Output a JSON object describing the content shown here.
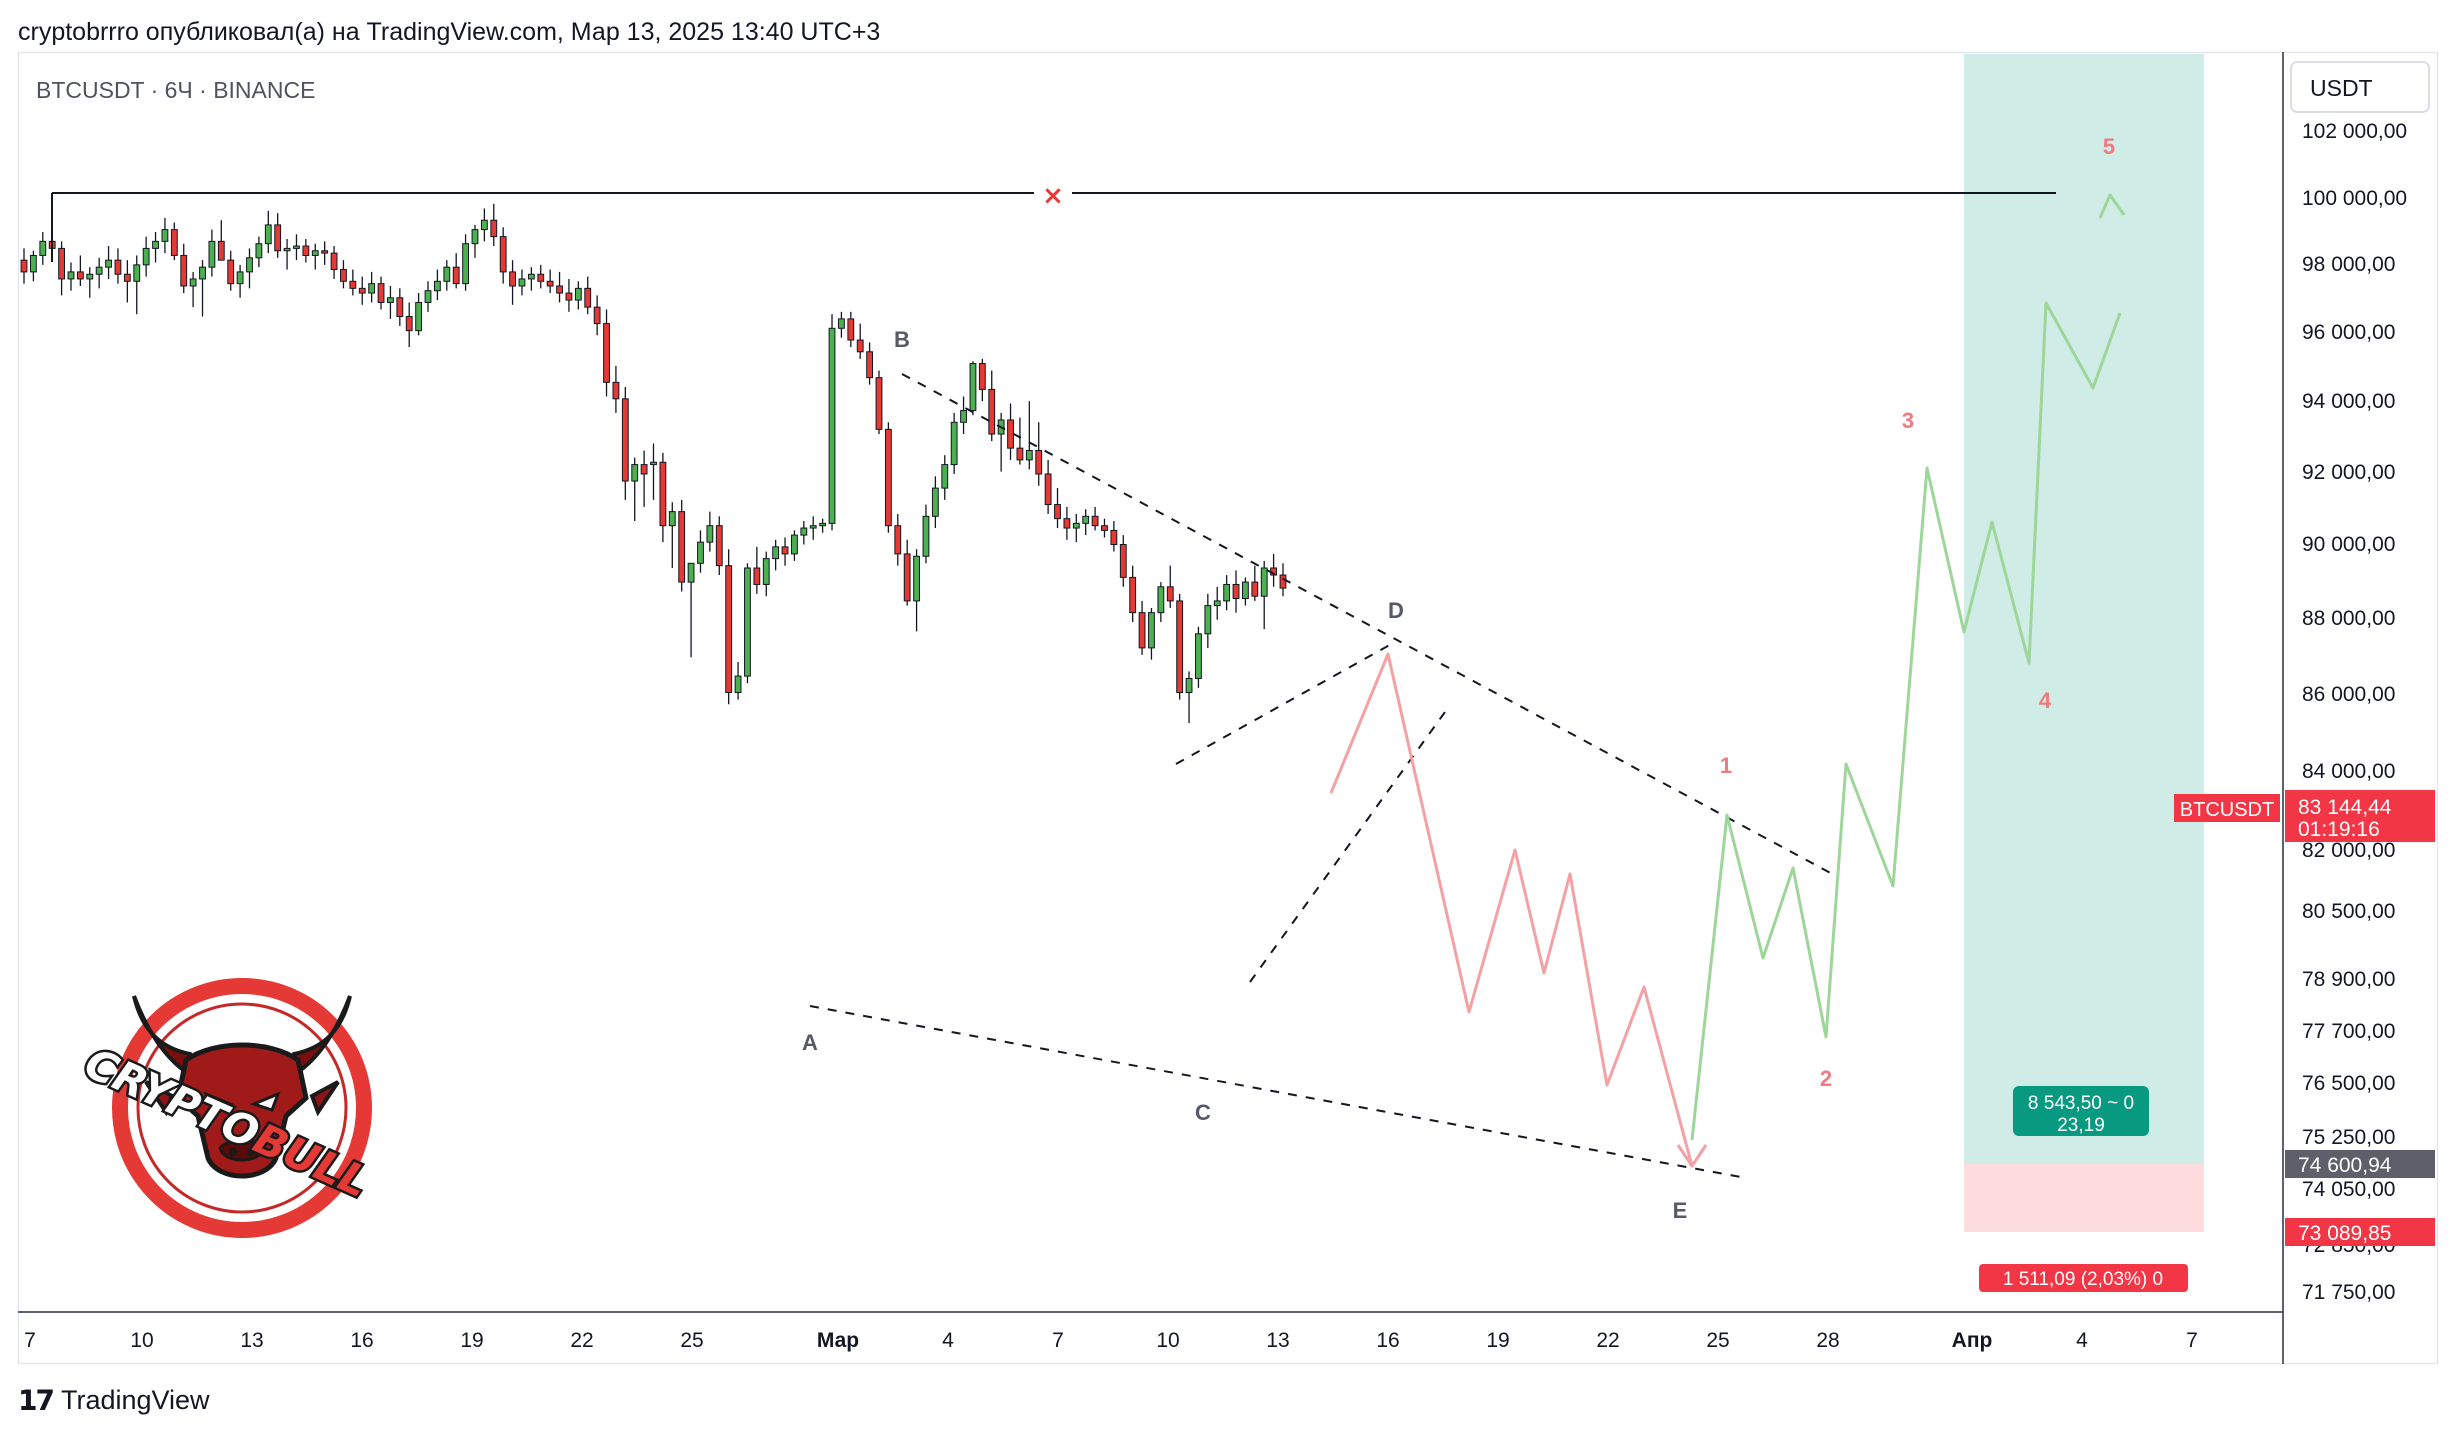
{
  "header": {
    "attribution": "cryptobrrro опубликовал(а) на TradingView.com, Мар 13, 2025 13:40 UTC+3"
  },
  "chart_title": "BTCUSDT · 6Ч · BINANCE",
  "currency": "USDT",
  "footer": {
    "brand": "TradingView"
  },
  "logo": {
    "word1": "CRYPTO",
    "word2": "BULL"
  },
  "colors": {
    "up": "#26a69a",
    "down": "#ef5350",
    "projection_down": "#f4a1a5",
    "projection_up": "#9ed69a",
    "target_zone": "#cfece6",
    "stop_zone": "#fcdcdd",
    "wave_label_red": "#f07a80",
    "wave_label_gray": "#555a66"
  },
  "chart_data": {
    "type": "candlestick",
    "timeframe": "6Ч",
    "symbol": "BTCUSDT",
    "exchange": "BINANCE",
    "x_ticks": [
      "7",
      "10",
      "13",
      "16",
      "19",
      "22",
      "25",
      "Мар",
      "4",
      "7",
      "10",
      "13",
      "16",
      "19",
      "22",
      "25",
      "28",
      "Апр",
      "4",
      "7"
    ],
    "y_ticks": [
      "102 000,00",
      "100 000,00",
      "98 000,00",
      "96 000,00",
      "94 000,00",
      "92 000,00",
      "90 000,00",
      "88 000,00",
      "86 000,00",
      "84 000,00",
      "82 000,00",
      "80 500,00",
      "78 900,00",
      "77 700,00",
      "76 500,00",
      "75 250,00",
      "74 050,00",
      "72 850,00",
      "71 750,00"
    ],
    "price_tags": {
      "last": {
        "symbol": "BTCUSDT",
        "price": "83 144,44",
        "countdown": "01:19:16"
      },
      "entry": "74 600,94",
      "stop": "73 089,85"
    },
    "position": {
      "target_label_1": "8 543,50 ~ 0",
      "target_label_2": "23,19",
      "stop_label": "1 511,09 (2,03%) 0"
    },
    "resistance_level": 100000,
    "wave_labels_corrective": [
      "A",
      "B",
      "C",
      "D",
      "E"
    ],
    "wave_labels_impulse": [
      "1",
      "2",
      "3",
      "4",
      "5"
    ],
    "pattern": "contracting triangle A-B-C-D-E followed by 5-wave impulse",
    "candles": [
      [
        97100,
        97600,
        96100,
        96600
      ],
      [
        96600,
        97500,
        96200,
        97300
      ],
      [
        97300,
        98300,
        96900,
        97900
      ],
      [
        97900,
        99800,
        97300,
        97600
      ],
      [
        97600,
        97900,
        95600,
        96300
      ],
      [
        96300,
        97000,
        95800,
        96600
      ],
      [
        96600,
        97300,
        96000,
        96300
      ],
      [
        96300,
        96800,
        95500,
        96500
      ],
      [
        96500,
        97200,
        95900,
        96800
      ],
      [
        96800,
        97700,
        96300,
        97100
      ],
      [
        97100,
        97600,
        96100,
        96500
      ],
      [
        96500,
        97100,
        95300,
        96200
      ],
      [
        96200,
        97300,
        94800,
        96900
      ],
      [
        96900,
        98100,
        96400,
        97600
      ],
      [
        97600,
        98300,
        97000,
        97900
      ],
      [
        97900,
        98900,
        97400,
        98400
      ],
      [
        98400,
        98700,
        97100,
        97300
      ],
      [
        97300,
        97800,
        95700,
        96000
      ],
      [
        96000,
        96600,
        95100,
        96300
      ],
      [
        96300,
        97100,
        94700,
        96800
      ],
      [
        96800,
        98400,
        96400,
        97900
      ],
      [
        97900,
        98800,
        97300,
        97100
      ],
      [
        97100,
        97500,
        95800,
        96100
      ],
      [
        96100,
        96900,
        95500,
        96600
      ],
      [
        96600,
        97600,
        95900,
        97200
      ],
      [
        97200,
        98100,
        96800,
        97800
      ],
      [
        97800,
        99200,
        97400,
        98600
      ],
      [
        98600,
        99100,
        97200,
        97500
      ],
      [
        97500,
        98000,
        96700,
        97600
      ],
      [
        97600,
        98200,
        97100,
        97700
      ],
      [
        97700,
        98000,
        97000,
        97300
      ],
      [
        97300,
        97800,
        96700,
        97500
      ],
      [
        97500,
        97900,
        96900,
        97400
      ],
      [
        97400,
        97700,
        96300,
        96700
      ],
      [
        96700,
        97100,
        95900,
        96200
      ],
      [
        96200,
        96700,
        95600,
        95900
      ],
      [
        95900,
        96400,
        95200,
        95700
      ],
      [
        95700,
        96600,
        95300,
        96100
      ],
      [
        96100,
        96400,
        95000,
        95300
      ],
      [
        95300,
        96000,
        94600,
        95500
      ],
      [
        95500,
        95900,
        94300,
        94700
      ],
      [
        94700,
        95300,
        93400,
        94100
      ],
      [
        94100,
        95700,
        93900,
        95300
      ],
      [
        95300,
        96200,
        94900,
        95800
      ],
      [
        95800,
        96700,
        95400,
        96200
      ],
      [
        96200,
        97100,
        95800,
        96800
      ],
      [
        96800,
        97400,
        95900,
        96100
      ],
      [
        96100,
        98200,
        95800,
        97800
      ],
      [
        97800,
        98600,
        97200,
        98400
      ],
      [
        98400,
        99300,
        97900,
        98800
      ],
      [
        98800,
        99500,
        97700,
        98100
      ],
      [
        98100,
        98500,
        96100,
        96600
      ],
      [
        96600,
        97100,
        95200,
        96000
      ],
      [
        96000,
        96700,
        95600,
        96300
      ],
      [
        96300,
        96800,
        95800,
        96500
      ],
      [
        96500,
        96900,
        95900,
        96200
      ],
      [
        96200,
        96700,
        95700,
        96000
      ],
      [
        96000,
        96600,
        95300,
        95700
      ],
      [
        95700,
        96300,
        94900,
        95400
      ],
      [
        95400,
        96200,
        95000,
        95900
      ],
      [
        95900,
        96400,
        94800,
        95100
      ],
      [
        95100,
        95600,
        93900,
        94400
      ],
      [
        94400,
        95000,
        91300,
        91900
      ],
      [
        91900,
        92600,
        90600,
        91200
      ],
      [
        91200,
        91700,
        86900,
        87700
      ],
      [
        87700,
        88700,
        86000,
        88400
      ],
      [
        88400,
        89000,
        86600,
        88000
      ],
      [
        88400,
        89300,
        86900,
        88500
      ],
      [
        88500,
        88900,
        85100,
        85800
      ],
      [
        85800,
        86800,
        84000,
        86400
      ],
      [
        86400,
        86900,
        83000,
        83400
      ],
      [
        83400,
        84200,
        80200,
        84200
      ],
      [
        84200,
        85600,
        83800,
        85100
      ],
      [
        85100,
        86400,
        84700,
        85800
      ],
      [
        85800,
        86200,
        83700,
        84100
      ],
      [
        84100,
        84800,
        78200,
        78700
      ],
      [
        78700,
        80000,
        78400,
        79400
      ],
      [
        79400,
        84200,
        79100,
        84000
      ],
      [
        84000,
        84900,
        82900,
        83300
      ],
      [
        83300,
        84700,
        82800,
        84400
      ],
      [
        84400,
        85200,
        83900,
        84900
      ],
      [
        84900,
        85300,
        84100,
        84600
      ],
      [
        84600,
        85600,
        84300,
        85400
      ],
      [
        85400,
        86000,
        85000,
        85700
      ],
      [
        85700,
        86200,
        85200,
        85800
      ],
      [
        85800,
        86100,
        85500,
        85900
      ],
      [
        85900,
        94800,
        85600,
        94200
      ],
      [
        94200,
        94900,
        93800,
        94600
      ],
      [
        94600,
        94900,
        93400,
        93700
      ],
      [
        93700,
        94400,
        92900,
        93200
      ],
      [
        93200,
        93600,
        91800,
        92100
      ],
      [
        92100,
        92400,
        89700,
        89900
      ],
      [
        89900,
        90200,
        85500,
        85800
      ],
      [
        85800,
        86300,
        84100,
        84600
      ],
      [
        84600,
        85200,
        82400,
        82600
      ],
      [
        82600,
        84800,
        81300,
        84500
      ],
      [
        84500,
        86700,
        84200,
        86200
      ],
      [
        86200,
        87900,
        85700,
        87400
      ],
      [
        87400,
        88800,
        86900,
        88400
      ],
      [
        88400,
        90600,
        88000,
        90200
      ],
      [
        90200,
        91300,
        89700,
        90700
      ],
      [
        90700,
        92800,
        90500,
        92700
      ],
      [
        92700,
        92900,
        91100,
        91600
      ],
      [
        91600,
        92400,
        89400,
        89700
      ],
      [
        89700,
        90600,
        88100,
        90300
      ],
      [
        90300,
        91000,
        88600,
        89100
      ],
      [
        89100,
        90400,
        88400,
        88600
      ],
      [
        88600,
        91100,
        88200,
        89000
      ],
      [
        89000,
        90200,
        87500,
        88000
      ],
      [
        88000,
        88600,
        86300,
        86700
      ],
      [
        86700,
        87400,
        85700,
        86100
      ],
      [
        86100,
        86600,
        85200,
        85700
      ],
      [
        85700,
        86300,
        85100,
        85900
      ],
      [
        85900,
        86500,
        85400,
        86200
      ],
      [
        86200,
        86600,
        85600,
        85800
      ],
      [
        85800,
        86100,
        85300,
        85600
      ],
      [
        85600,
        86000,
        84700,
        85000
      ],
      [
        85000,
        85400,
        83200,
        83600
      ],
      [
        83600,
        84100,
        81700,
        82100
      ],
      [
        82100,
        82600,
        80300,
        80600
      ],
      [
        80600,
        82300,
        80100,
        82100
      ],
      [
        82100,
        83400,
        81700,
        83200
      ],
      [
        83200,
        84100,
        82300,
        82600
      ],
      [
        82600,
        82900,
        78400,
        78700
      ],
      [
        78700,
        79600,
        77400,
        79300
      ],
      [
        79300,
        81500,
        78900,
        81200
      ],
      [
        81200,
        82900,
        80600,
        82400
      ],
      [
        82400,
        83200,
        81800,
        82600
      ],
      [
        82600,
        83700,
        82200,
        83300
      ],
      [
        83300,
        83900,
        82100,
        82700
      ],
      [
        82700,
        83600,
        82400,
        83400
      ],
      [
        83400,
        84100,
        82600,
        82800
      ],
      [
        82800,
        84300,
        81400,
        84000
      ],
      [
        84000,
        84600,
        83200,
        83700
      ],
      [
        83700,
        84200,
        82800,
        83144
      ]
    ]
  }
}
